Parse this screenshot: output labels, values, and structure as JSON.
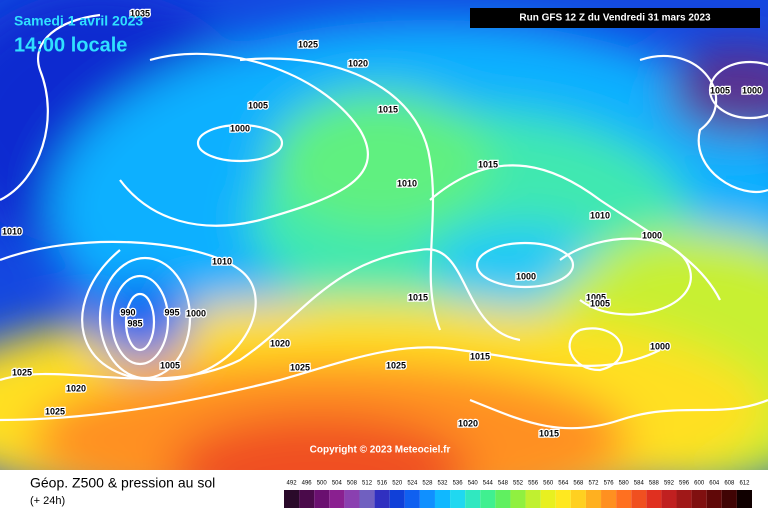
{
  "header": {
    "date": "Samedi 1 avril 2023",
    "time": "14:00 locale",
    "run_info": "Run GFS 12 Z du Vendredi 31 mars 2023"
  },
  "isobar_labels": [
    "1035",
    "1025",
    "1020",
    "1005",
    "1000",
    "1015",
    "1015",
    "1010",
    "1010",
    "1000",
    "1010",
    "1010",
    "1000",
    "1015",
    "1005",
    "1005",
    "990",
    "995",
    "1000",
    "985",
    "1000",
    "1020",
    "1015",
    "1025",
    "1025",
    "1025",
    "1005",
    "1020",
    "1025",
    "1020",
    "1015",
    "1005",
    "1000"
  ],
  "copyright": "Copyright © 2023 Meteociel.fr",
  "legend": {
    "title": "Géop. Z500 & pression au sol",
    "subtitle": "(+ 24h)",
    "ticks": [
      492,
      496,
      500,
      504,
      508,
      512,
      516,
      520,
      524,
      528,
      532,
      536,
      540,
      544,
      548,
      552,
      556,
      560,
      564,
      568,
      572,
      576,
      580,
      584,
      588,
      592,
      596,
      600,
      604,
      608,
      612
    ],
    "colors": [
      "#2a0a2a",
      "#4a0a4a",
      "#6a1070",
      "#8a2090",
      "#8a40b0",
      "#7060c0",
      "#3030c0",
      "#1040d8",
      "#1060f0",
      "#1090ff",
      "#10b8ff",
      "#20d8f0",
      "#30e8c0",
      "#40f090",
      "#60f060",
      "#90f040",
      "#c0f030",
      "#e8f020",
      "#ffe820",
      "#ffd020",
      "#ffb020",
      "#ff9020",
      "#ff7020",
      "#f05020",
      "#e03020",
      "#c02020",
      "#a01818",
      "#801010",
      "#600808",
      "#400404",
      "#100000"
    ]
  }
}
